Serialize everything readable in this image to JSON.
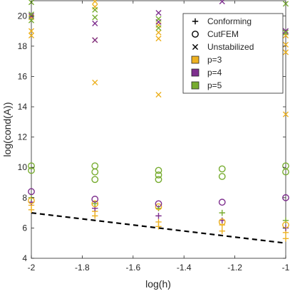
{
  "chart_data": {
    "type": "scatter",
    "xlabel": "log(h)",
    "ylabel": "log(cond(A))",
    "xlim": [
      -2,
      -1
    ],
    "ylim": [
      4,
      21
    ],
    "x_ticks": [
      -2,
      -1.8,
      -1.6,
      -1.4,
      -1.2,
      -1
    ],
    "x_tick_labels": [
      "-2",
      "-1.8",
      "-1.6",
      "-1.4",
      "-1.2",
      "-1"
    ],
    "y_ticks": [
      4,
      6,
      8,
      10,
      12,
      14,
      16,
      18,
      20
    ],
    "y_tick_labels": [
      "4",
      "6",
      "8",
      "10",
      "12",
      "14",
      "16",
      "18",
      "20"
    ],
    "grid": false,
    "legend_position": "top-right",
    "legend": [
      {
        "label": "Conforming",
        "marker": "plus",
        "color": "#000000"
      },
      {
        "label": "CutFEM",
        "marker": "circle",
        "color": "#000000"
      },
      {
        "label": "Unstabilized",
        "marker": "cross",
        "color": "#000000"
      },
      {
        "label": "p=3",
        "marker": "square",
        "color": "#EDB120"
      },
      {
        "label": "p=4",
        "marker": "square",
        "color": "#7E2F8E"
      },
      {
        "label": "p=5",
        "marker": "square",
        "color": "#77AC30"
      }
    ],
    "reference_line": {
      "style": "dashed",
      "color": "#000000",
      "x": [
        -2,
        -1
      ],
      "y": [
        7.0,
        5.0
      ]
    },
    "series": [
      {
        "marker": "plus",
        "color": "#EDB120",
        "points": [
          [
            -2,
            7.2
          ],
          [
            -2,
            7.5
          ],
          [
            -1.75,
            6.8
          ],
          [
            -1.75,
            7.1
          ],
          [
            -1.5,
            6.1
          ],
          [
            -1.5,
            6.4
          ],
          [
            -1.25,
            5.8
          ],
          [
            -1.25,
            6.2
          ],
          [
            -1,
            5.3
          ],
          [
            -1,
            5.7
          ]
        ]
      },
      {
        "marker": "plus",
        "color": "#7E2F8E",
        "points": [
          [
            -2,
            7.7
          ],
          [
            -1.75,
            7.3
          ],
          [
            -1.5,
            6.8
          ],
          [
            -1.25,
            6.5
          ],
          [
            -1,
            6.0
          ]
        ]
      },
      {
        "marker": "plus",
        "color": "#77AC30",
        "points": [
          [
            -2,
            8.0
          ],
          [
            -1.75,
            7.6
          ],
          [
            -1.5,
            7.3
          ],
          [
            -1.25,
            7.0
          ],
          [
            -1,
            6.5
          ]
        ]
      },
      {
        "marker": "circle",
        "color": "#EDB120",
        "points": [
          [
            -2,
            7.8
          ],
          [
            -1.75,
            7.6
          ],
          [
            -1.5,
            7.4
          ],
          [
            -1.25,
            6.4
          ],
          [
            -1,
            6.2
          ]
        ]
      },
      {
        "marker": "circle",
        "color": "#7E2F8E",
        "points": [
          [
            -2,
            8.4
          ],
          [
            -1.75,
            7.9
          ],
          [
            -1.5,
            7.6
          ],
          [
            -1.25,
            7.7
          ],
          [
            -1,
            8.0
          ]
        ]
      },
      {
        "marker": "circle",
        "color": "#77AC30",
        "points": [
          [
            -2,
            9.8
          ],
          [
            -2,
            10.1
          ],
          [
            -1.75,
            9.2
          ],
          [
            -1.75,
            9.7
          ],
          [
            -1.75,
            10.1
          ],
          [
            -1.5,
            9.2
          ],
          [
            -1.5,
            9.5
          ],
          [
            -1.5,
            9.8
          ],
          [
            -1.25,
            9.4
          ],
          [
            -1.25,
            9.9
          ],
          [
            -1,
            9.7
          ],
          [
            -1,
            10.1
          ]
        ]
      },
      {
        "marker": "cross",
        "color": "#EDB120",
        "points": [
          [
            -2,
            18.7
          ],
          [
            -2,
            19.0
          ],
          [
            -2,
            19.9
          ],
          [
            -1.75,
            15.6
          ],
          [
            -1.75,
            18.4
          ],
          [
            -1.75,
            20.6
          ],
          [
            -1.75,
            21.0
          ],
          [
            -1.5,
            14.8
          ],
          [
            -1.5,
            18.5
          ],
          [
            -1.5,
            18.9
          ],
          [
            -1.5,
            19.4
          ],
          [
            -1.25,
            15.8
          ],
          [
            -1,
            13.5
          ],
          [
            -1,
            17.6
          ],
          [
            -1,
            18.1
          ],
          [
            -1,
            18.7
          ]
        ]
      },
      {
        "marker": "cross",
        "color": "#7E2F8E",
        "points": [
          [
            -2,
            20.0
          ],
          [
            -1.75,
            18.4
          ],
          [
            -1.75,
            19.5
          ],
          [
            -1.5,
            19.6
          ],
          [
            -1.5,
            20.2
          ],
          [
            -1.25,
            21.4
          ],
          [
            -1,
            19.0
          ]
        ]
      },
      {
        "marker": "cross",
        "color": "#77AC30",
        "points": [
          [
            -2,
            19.7
          ],
          [
            -2,
            20.1
          ],
          [
            -2,
            20.9
          ],
          [
            -1.75,
            19.9
          ],
          [
            -1.75,
            20.4
          ],
          [
            -1.5,
            19.2
          ],
          [
            -1.5,
            19.8
          ],
          [
            -1,
            18.9
          ],
          [
            -1,
            20.8
          ]
        ]
      }
    ]
  }
}
